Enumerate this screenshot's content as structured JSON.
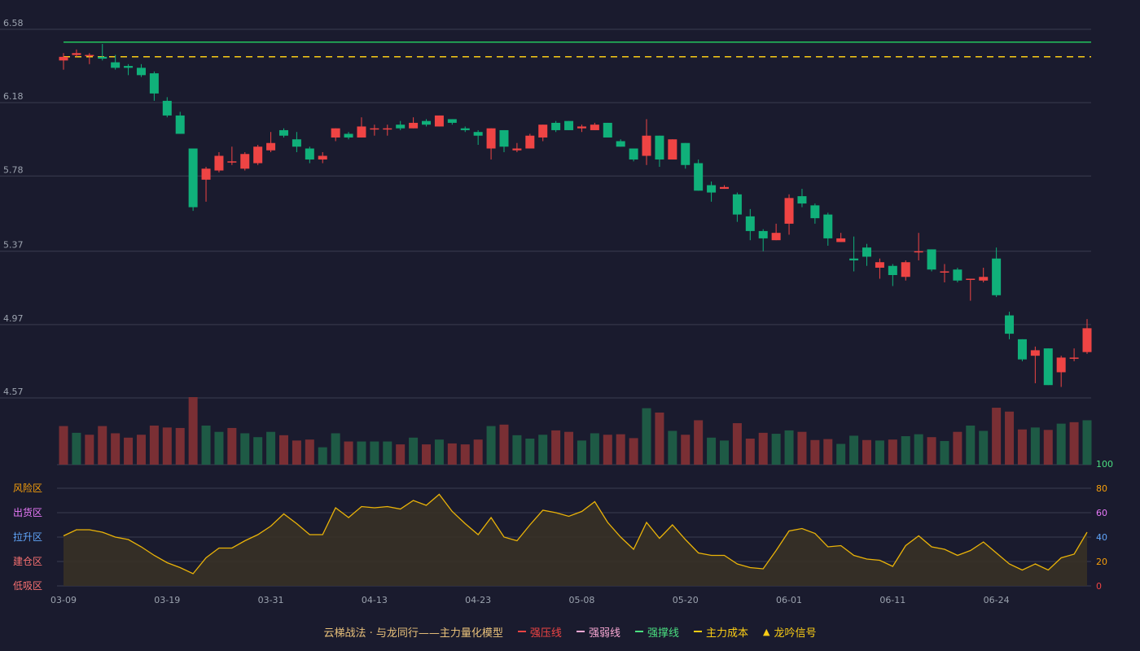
{
  "chart_data": {
    "type": "candlestick",
    "price_axis": {
      "ticks": [
        "6.58",
        "6.18",
        "5.78",
        "5.37",
        "4.97",
        "4.57"
      ]
    },
    "x_ticks": [
      {
        "label": "03-09",
        "index": 0
      },
      {
        "label": "03-19",
        "index": 8
      },
      {
        "label": "03-31",
        "index": 16
      },
      {
        "label": "04-13",
        "index": 24
      },
      {
        "label": "04-23",
        "index": 32
      },
      {
        "label": "05-08",
        "index": 40
      },
      {
        "label": "05-20",
        "index": 48
      },
      {
        "label": "06-01",
        "index": 56
      },
      {
        "label": "06-11",
        "index": 64
      },
      {
        "label": "06-24",
        "index": 72
      }
    ],
    "candles": [
      [
        6.41,
        6.43,
        6.45,
        6.36
      ],
      [
        6.44,
        6.45,
        6.47,
        6.43
      ],
      [
        6.44,
        6.44,
        6.45,
        6.39
      ],
      [
        6.43,
        6.42,
        6.5,
        6.41
      ],
      [
        6.4,
        6.37,
        6.44,
        6.36
      ],
      [
        6.38,
        6.37,
        6.39,
        6.33
      ],
      [
        6.37,
        6.33,
        6.39,
        6.32
      ],
      [
        6.34,
        6.23,
        6.35,
        6.19
      ],
      [
        6.19,
        6.11,
        6.21,
        6.1
      ],
      [
        6.11,
        6.01,
        6.13,
        6.01
      ],
      [
        5.93,
        5.61,
        5.93,
        5.59
      ],
      [
        5.76,
        5.82,
        5.83,
        5.64
      ],
      [
        5.81,
        5.89,
        5.91,
        5.8
      ],
      [
        5.86,
        5.86,
        5.94,
        5.84
      ],
      [
        5.82,
        5.9,
        5.91,
        5.81
      ],
      [
        5.85,
        5.94,
        5.95,
        5.84
      ],
      [
        5.92,
        5.96,
        6.02,
        5.91
      ],
      [
        6.03,
        6.0,
        6.04,
        5.99
      ],
      [
        5.98,
        5.94,
        6.02,
        5.91
      ],
      [
        5.93,
        5.87,
        5.94,
        5.85
      ],
      [
        5.87,
        5.89,
        5.91,
        5.85
      ],
      [
        5.99,
        6.04,
        6.04,
        5.97
      ],
      [
        6.01,
        5.99,
        6.02,
        5.98
      ],
      [
        5.99,
        6.05,
        6.1,
        5.99
      ],
      [
        6.04,
        6.04,
        6.06,
        6.0
      ],
      [
        6.04,
        6.04,
        6.06,
        6.0
      ],
      [
        6.06,
        6.04,
        6.08,
        6.03
      ],
      [
        6.04,
        6.07,
        6.1,
        6.04
      ],
      [
        6.08,
        6.06,
        6.09,
        6.05
      ],
      [
        6.05,
        6.11,
        6.11,
        6.05
      ],
      [
        6.09,
        6.07,
        6.09,
        6.06
      ],
      [
        6.04,
        6.03,
        6.05,
        6.02
      ],
      [
        6.02,
        6.0,
        6.03,
        5.95
      ],
      [
        5.93,
        6.04,
        6.04,
        5.87
      ],
      [
        6.03,
        5.94,
        6.03,
        5.91
      ],
      [
        5.92,
        5.93,
        5.96,
        5.91
      ],
      [
        5.93,
        6.0,
        6.01,
        5.93
      ],
      [
        5.99,
        6.06,
        6.06,
        5.97
      ],
      [
        6.07,
        6.03,
        6.08,
        6.02
      ],
      [
        6.08,
        6.03,
        6.08,
        6.03
      ],
      [
        6.04,
        6.05,
        6.06,
        6.02
      ],
      [
        6.03,
        6.06,
        6.07,
        6.03
      ],
      [
        6.07,
        5.99,
        6.07,
        5.99
      ],
      [
        5.97,
        5.94,
        5.98,
        5.94
      ],
      [
        5.93,
        5.87,
        5.93,
        5.86
      ],
      [
        5.89,
        6.0,
        6.09,
        5.84
      ],
      [
        6.0,
        5.87,
        6.0,
        5.83
      ],
      [
        5.87,
        5.98,
        5.98,
        5.87
      ],
      [
        5.96,
        5.84,
        5.96,
        5.82
      ],
      [
        5.85,
        5.7,
        5.87,
        5.7
      ],
      [
        5.73,
        5.69,
        5.75,
        5.64
      ],
      [
        5.71,
        5.72,
        5.73,
        5.71
      ],
      [
        5.68,
        5.57,
        5.69,
        5.53
      ],
      [
        5.56,
        5.48,
        5.6,
        5.43
      ],
      [
        5.48,
        5.44,
        5.49,
        5.37
      ],
      [
        5.43,
        5.47,
        5.52,
        5.43
      ],
      [
        5.52,
        5.66,
        5.68,
        5.46
      ],
      [
        5.67,
        5.63,
        5.71,
        5.61
      ],
      [
        5.62,
        5.55,
        5.63,
        5.52
      ],
      [
        5.57,
        5.44,
        5.58,
        5.4
      ],
      [
        5.42,
        5.44,
        5.47,
        5.42
      ],
      [
        5.33,
        5.32,
        5.45,
        5.26
      ],
      [
        5.39,
        5.34,
        5.41,
        5.29
      ],
      [
        5.28,
        5.31,
        5.33,
        5.22
      ],
      [
        5.29,
        5.24,
        5.3,
        5.18
      ],
      [
        5.23,
        5.31,
        5.32,
        5.21
      ],
      [
        5.37,
        5.37,
        5.47,
        5.32
      ],
      [
        5.38,
        5.27,
        5.38,
        5.26
      ],
      [
        5.26,
        5.26,
        5.3,
        5.2
      ],
      [
        5.27,
        5.21,
        5.28,
        5.2
      ],
      [
        5.22,
        5.22,
        5.22,
        5.1
      ],
      [
        5.21,
        5.23,
        5.28,
        5.2
      ],
      [
        5.33,
        5.13,
        5.39,
        5.12
      ],
      [
        5.02,
        4.92,
        5.04,
        4.89
      ],
      [
        4.89,
        4.78,
        4.89,
        4.77
      ],
      [
        4.8,
        4.83,
        4.85,
        4.65
      ],
      [
        4.84,
        4.64,
        4.84,
        4.64
      ],
      [
        4.71,
        4.79,
        4.8,
        4.63
      ],
      [
        4.79,
        4.79,
        4.84,
        4.77
      ],
      [
        4.82,
        4.95,
        5.0,
        4.81
      ]
    ],
    "volume": [
      {
        "v": 80,
        "up": true
      },
      {
        "v": 66,
        "up": false
      },
      {
        "v": 62,
        "up": true
      },
      {
        "v": 80,
        "up": true
      },
      {
        "v": 65,
        "up": true
      },
      {
        "v": 56,
        "up": true
      },
      {
        "v": 62,
        "up": true
      },
      {
        "v": 81,
        "up": true
      },
      {
        "v": 77,
        "up": true
      },
      {
        "v": 76,
        "up": true
      },
      {
        "v": 140,
        "up": true
      },
      {
        "v": 81,
        "up": false
      },
      {
        "v": 68,
        "up": false
      },
      {
        "v": 76,
        "up": true
      },
      {
        "v": 65,
        "up": false
      },
      {
        "v": 57,
        "up": false
      },
      {
        "v": 68,
        "up": false
      },
      {
        "v": 61,
        "up": true
      },
      {
        "v": 50,
        "up": true
      },
      {
        "v": 52,
        "up": true
      },
      {
        "v": 36,
        "up": false
      },
      {
        "v": 65,
        "up": false
      },
      {
        "v": 48,
        "up": true
      },
      {
        "v": 48,
        "up": false
      },
      {
        "v": 48,
        "up": false
      },
      {
        "v": 48,
        "up": false
      },
      {
        "v": 42,
        "up": true
      },
      {
        "v": 56,
        "up": false
      },
      {
        "v": 42,
        "up": true
      },
      {
        "v": 52,
        "up": false
      },
      {
        "v": 44,
        "up": true
      },
      {
        "v": 42,
        "up": true
      },
      {
        "v": 52,
        "up": true
      },
      {
        "v": 80,
        "up": false
      },
      {
        "v": 83,
        "up": true
      },
      {
        "v": 61,
        "up": false
      },
      {
        "v": 54,
        "up": false
      },
      {
        "v": 62,
        "up": false
      },
      {
        "v": 71,
        "up": true
      },
      {
        "v": 68,
        "up": true
      },
      {
        "v": 50,
        "up": false
      },
      {
        "v": 65,
        "up": false
      },
      {
        "v": 62,
        "up": true
      },
      {
        "v": 63,
        "up": true
      },
      {
        "v": 55,
        "up": true
      },
      {
        "v": 117,
        "up": false
      },
      {
        "v": 108,
        "up": true
      },
      {
        "v": 70,
        "up": false
      },
      {
        "v": 62,
        "up": true
      },
      {
        "v": 92,
        "up": true
      },
      {
        "v": 56,
        "up": false
      },
      {
        "v": 50,
        "up": false
      },
      {
        "v": 86,
        "up": true
      },
      {
        "v": 54,
        "up": true
      },
      {
        "v": 66,
        "up": true
      },
      {
        "v": 64,
        "up": false
      },
      {
        "v": 71,
        "up": false
      },
      {
        "v": 68,
        "up": true
      },
      {
        "v": 51,
        "up": true
      },
      {
        "v": 53,
        "up": true
      },
      {
        "v": 43,
        "up": false
      },
      {
        "v": 60,
        "up": false
      },
      {
        "v": 51,
        "up": true
      },
      {
        "v": 50,
        "up": false
      },
      {
        "v": 52,
        "up": true
      },
      {
        "v": 59,
        "up": false
      },
      {
        "v": 63,
        "up": false
      },
      {
        "v": 57,
        "up": true
      },
      {
        "v": 49,
        "up": false
      },
      {
        "v": 68,
        "up": true
      },
      {
        "v": 81,
        "up": false
      },
      {
        "v": 70,
        "up": false
      },
      {
        "v": 118,
        "up": true
      },
      {
        "v": 110,
        "up": true
      },
      {
        "v": 73,
        "up": true
      },
      {
        "v": 77,
        "up": false
      },
      {
        "v": 72,
        "up": true
      },
      {
        "v": 85,
        "up": false
      },
      {
        "v": 88,
        "up": true
      },
      {
        "v": 92,
        "up": false
      }
    ],
    "resistance_level": 6.51,
    "main_cost_level": 6.43,
    "oscillator": {
      "ticks": [
        "100",
        "80",
        "60",
        "40",
        "20",
        "0"
      ],
      "zones": [
        "风险区",
        "出货区",
        "拉升区",
        "建仓区",
        "低吸区"
      ],
      "values": [
        41,
        46,
        46,
        44,
        40,
        38,
        32,
        25,
        19,
        15,
        10,
        23,
        31,
        31,
        37,
        42,
        49,
        59,
        51,
        42,
        42,
        64,
        56,
        65,
        64,
        65,
        63,
        70,
        66,
        75,
        61,
        51,
        42,
        56,
        40,
        37,
        50,
        62,
        60,
        57,
        61,
        69,
        52,
        40,
        30,
        52,
        39,
        50,
        38,
        27,
        25,
        25,
        18,
        15,
        14,
        29,
        45,
        47,
        43,
        32,
        33,
        25,
        22,
        21,
        16,
        33,
        41,
        32,
        30,
        25,
        29,
        36,
        27,
        18,
        13,
        18,
        13,
        23,
        26,
        44
      ]
    }
  },
  "legend": {
    "title": "云梯战法 · 与龙同行——主力量化模型",
    "items": [
      {
        "label": "强压线",
        "color": "#ef4444",
        "style": "solid"
      },
      {
        "label": "强弱线",
        "color": "#f9a8d4",
        "style": "dashed"
      },
      {
        "label": "强撑线",
        "color": "#4ade80",
        "style": "solid"
      },
      {
        "label": "主力成本",
        "color": "#facc15",
        "style": "dashed"
      },
      {
        "label": "龙吟信号",
        "color": "#facc15",
        "style": "triangle",
        "icon": "triangle-up-icon"
      }
    ]
  },
  "colors": {
    "background": "#1a1b2e",
    "up": "#ef4444",
    "down": "#10b07a",
    "volume_up": "#7a2f34",
    "volume_down": "#1e5a45",
    "grid": "#3a3c50",
    "axis_text": "#9ca3af",
    "resistance": "#22c55e",
    "cost": "#facc15",
    "oscillator_line": "#eab308",
    "oscillator_fill": "#3a3124",
    "zone_colors": [
      "#f59e0b",
      "#e879f9",
      "#60a5fa",
      "#f87171",
      "#f87171"
    ],
    "osc_tick_colors": [
      "#4ade80",
      "#f59e0b",
      "#e879f9",
      "#60a5fa",
      "#f59e0b",
      "#ef4444"
    ]
  }
}
